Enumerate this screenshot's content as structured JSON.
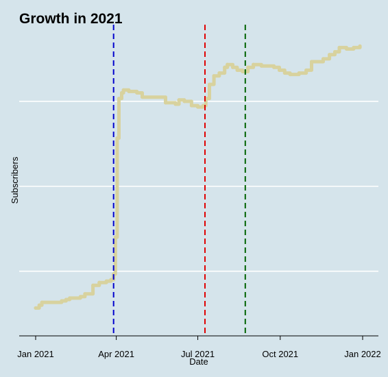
{
  "chart_data": {
    "type": "line",
    "title": "Growth in 2021",
    "xlabel": "Date",
    "ylabel": "Subscribers",
    "xlim": [
      "2021-01-01",
      "2022-01-01"
    ],
    "ylim": [
      0,
      100
    ],
    "grid": {
      "horizontal": true,
      "vertical": false
    },
    "x_ticks": [
      {
        "date": "2021-01-01",
        "label": "Jan 2021"
      },
      {
        "date": "2021-04-01",
        "label": "Apr 2021"
      },
      {
        "date": "2021-07-01",
        "label": "Jul 2021"
      },
      {
        "date": "2021-10-01",
        "label": "Oct 2021"
      },
      {
        "date": "2022-01-01",
        "label": "Jan 2022"
      }
    ],
    "y_gridlines": [
      18,
      48,
      78
    ],
    "reference_lines": [
      {
        "date": "2021-03-29",
        "color": "#0000cc"
      },
      {
        "date": "2021-07-09",
        "color": "#e00000"
      },
      {
        "date": "2021-08-23",
        "color": "#006400"
      }
    ],
    "series": [
      {
        "color": "#d8d29e",
        "points": [
          [
            "2021-01-01",
            5.0
          ],
          [
            "2021-01-05",
            6.0
          ],
          [
            "2021-01-08",
            7.0
          ],
          [
            "2021-01-30",
            7.5
          ],
          [
            "2021-02-04",
            8.0
          ],
          [
            "2021-02-08",
            8.5
          ],
          [
            "2021-02-20",
            9.0
          ],
          [
            "2021-02-25",
            10.0
          ],
          [
            "2021-03-06",
            13.0
          ],
          [
            "2021-03-13",
            14.0
          ],
          [
            "2021-03-21",
            14.5
          ],
          [
            "2021-03-26",
            15.0
          ],
          [
            "2021-03-29",
            17.0
          ],
          [
            "2021-03-31",
            30.0
          ],
          [
            "2021-04-02",
            65.0
          ],
          [
            "2021-04-04",
            79.0
          ],
          [
            "2021-04-07",
            81.0
          ],
          [
            "2021-04-09",
            82.0
          ],
          [
            "2021-04-15",
            81.5
          ],
          [
            "2021-04-24",
            81.0
          ],
          [
            "2021-04-30",
            79.5
          ],
          [
            "2021-05-26",
            77.5
          ],
          [
            "2021-06-06",
            77.0
          ],
          [
            "2021-06-10",
            78.5
          ],
          [
            "2021-06-16",
            78.0
          ],
          [
            "2021-06-24",
            76.5
          ],
          [
            "2021-07-01",
            76.0
          ],
          [
            "2021-07-07",
            76.5
          ],
          [
            "2021-07-10",
            79.0
          ],
          [
            "2021-07-14",
            84.0
          ],
          [
            "2021-07-19",
            87.0
          ],
          [
            "2021-07-25",
            88.0
          ],
          [
            "2021-07-31",
            90.0
          ],
          [
            "2021-08-03",
            91.0
          ],
          [
            "2021-08-09",
            90.0
          ],
          [
            "2021-08-14",
            89.0
          ],
          [
            "2021-08-20",
            88.5
          ],
          [
            "2021-08-26",
            90.0
          ],
          [
            "2021-09-01",
            91.0
          ],
          [
            "2021-09-10",
            90.5
          ],
          [
            "2021-09-24",
            90.0
          ],
          [
            "2021-09-30",
            89.0
          ],
          [
            "2021-10-06",
            88.0
          ],
          [
            "2021-10-12",
            87.5
          ],
          [
            "2021-10-22",
            88.0
          ],
          [
            "2021-10-30",
            89.0
          ],
          [
            "2021-11-05",
            92.0
          ],
          [
            "2021-11-18",
            93.0
          ],
          [
            "2021-11-25",
            94.5
          ],
          [
            "2021-12-01",
            95.5
          ],
          [
            "2021-12-06",
            97.0
          ],
          [
            "2021-12-14",
            96.5
          ],
          [
            "2021-12-22",
            97.0
          ],
          [
            "2021-12-29",
            97.5
          ]
        ]
      }
    ]
  }
}
